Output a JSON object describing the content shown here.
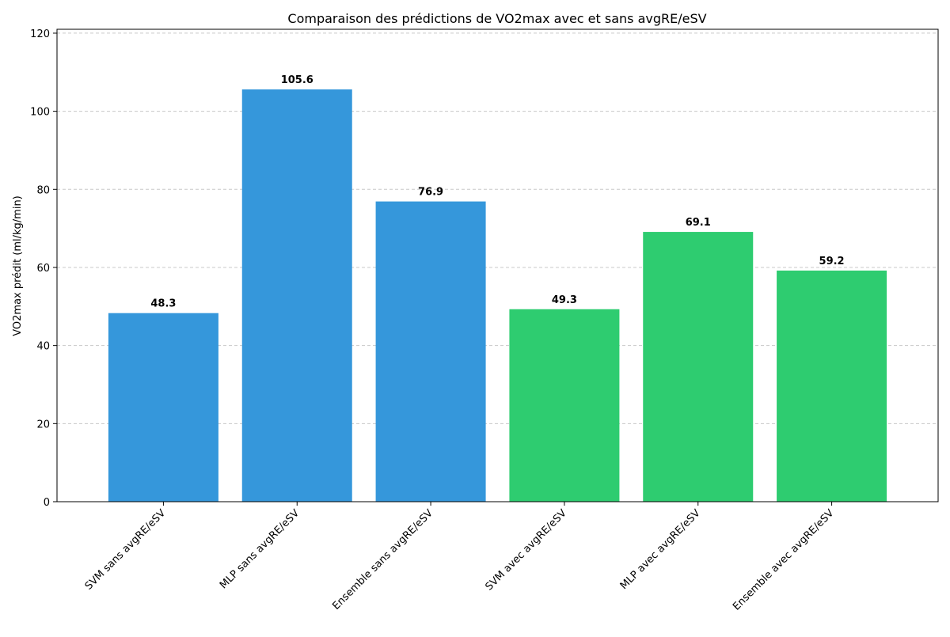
{
  "chart_data": {
    "type": "bar",
    "title": "Comparaison des prédictions de VO2max avec et sans avgRE/eSV",
    "xlabel": "",
    "ylabel": "VO2max prédit (ml/kg/min)",
    "categories": [
      "SVM sans avgRE/eSV",
      "MLP sans avgRE/eSV",
      "Ensemble sans avgRE/eSV",
      "SVM avec avgRE/eSV",
      "MLP avec avgRE/eSV",
      "Ensemble avec avgRE/eSV"
    ],
    "values": [
      48.3,
      105.6,
      76.9,
      49.3,
      69.1,
      59.2
    ],
    "value_labels": [
      "48.3",
      "105.6",
      "76.9",
      "49.3",
      "69.1",
      "59.2"
    ],
    "colors": [
      "#3597db",
      "#3597db",
      "#3597db",
      "#2ecc70",
      "#2ecc70",
      "#2ecc70"
    ],
    "ylim": [
      0,
      121
    ],
    "yticks": [
      0,
      20,
      40,
      60,
      80,
      100,
      120
    ],
    "ytick_labels": [
      "0",
      "20",
      "40",
      "60",
      "80",
      "100",
      "120"
    ],
    "grid": "y-dashed",
    "legend": "none"
  }
}
